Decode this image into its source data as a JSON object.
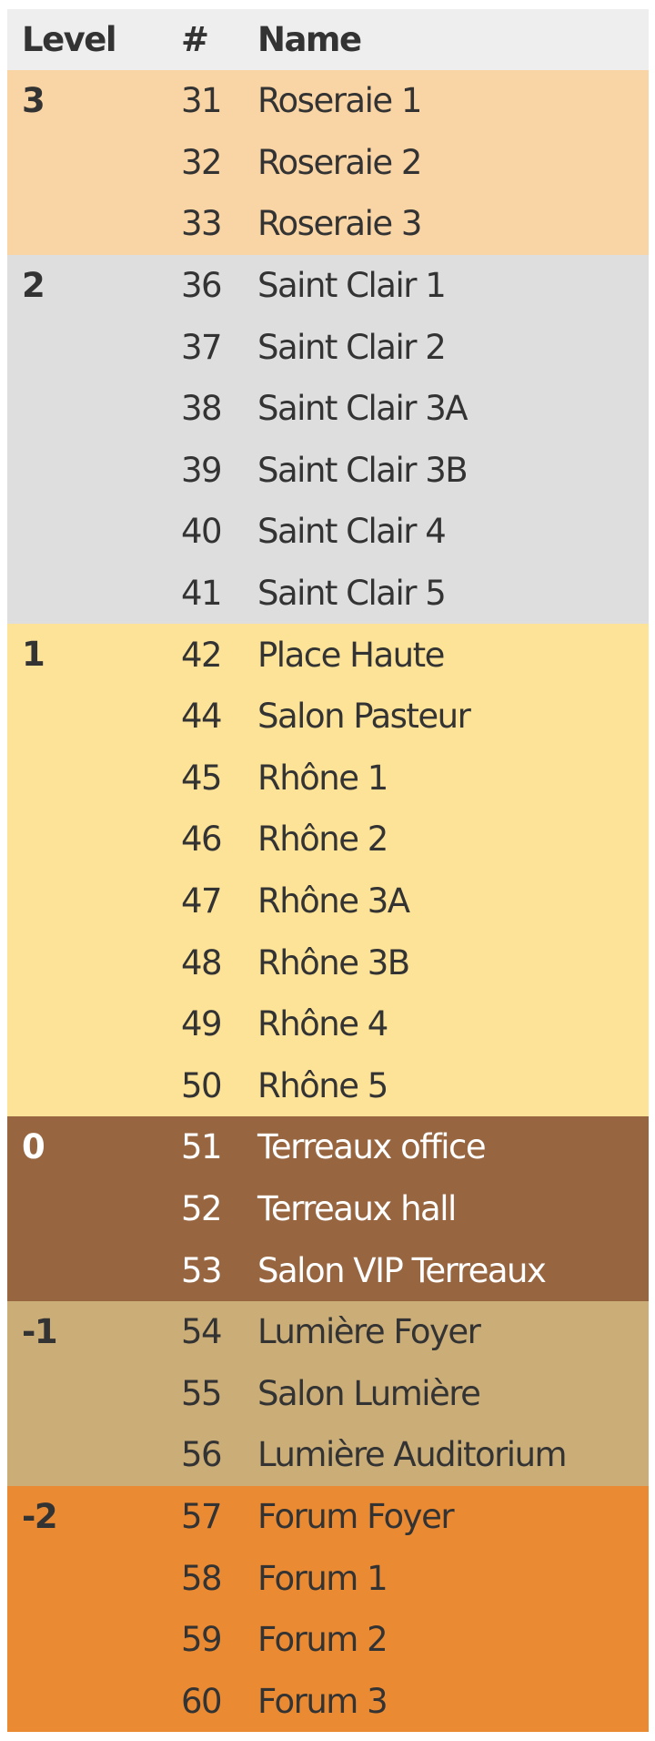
{
  "headers": {
    "level": "Level",
    "number": "#",
    "name": "Name"
  },
  "groups": [
    {
      "level": "3",
      "color": "#f9d4a4",
      "dark": false,
      "rooms": [
        [
          "31",
          "Roseraie 1"
        ],
        [
          "32",
          "Roseraie 2"
        ],
        [
          "33",
          "Roseraie 3"
        ]
      ]
    },
    {
      "level": "2",
      "color": "#dedede",
      "dark": false,
      "rooms": [
        [
          "36",
          "Saint Clair 1"
        ],
        [
          "37",
          "Saint Clair 2"
        ],
        [
          "38",
          "Saint Clair 3A"
        ],
        [
          "39",
          "Saint Clair 3B"
        ],
        [
          "40",
          "Saint Clair 4"
        ],
        [
          "41",
          "Saint Clair 5"
        ]
      ]
    },
    {
      "level": "1",
      "color": "#fde397",
      "dark": false,
      "rooms": [
        [
          "42",
          "Place Haute"
        ],
        [
          "44",
          "Salon Pasteur"
        ],
        [
          "45",
          "Rhône 1"
        ],
        [
          "46",
          "Rhône 2"
        ],
        [
          "47",
          "Rhône 3A"
        ],
        [
          "48",
          "Rhône 3B"
        ],
        [
          "49",
          "Rhône 4"
        ],
        [
          "50",
          "Rhône 5"
        ]
      ]
    },
    {
      "level": "0",
      "color": "#976641",
      "dark": true,
      "rooms": [
        [
          "51",
          "Terreaux office"
        ],
        [
          "52",
          "Terreaux hall"
        ],
        [
          "53",
          "Salon VIP Terreaux"
        ]
      ]
    },
    {
      "level": "-1",
      "color": "#cbad78",
      "dark": false,
      "rooms": [
        [
          "54",
          "Lumière Foyer"
        ],
        [
          "55",
          "Salon Lumière"
        ],
        [
          "56",
          "Lumière Auditorium"
        ]
      ]
    },
    {
      "level": "-2",
      "color": "#ea8a33",
      "dark": false,
      "rooms": [
        [
          "57",
          "Forum Foyer"
        ],
        [
          "58",
          "Forum 1"
        ],
        [
          "59",
          "Forum 2"
        ],
        [
          "60",
          "Forum 3"
        ]
      ]
    }
  ]
}
